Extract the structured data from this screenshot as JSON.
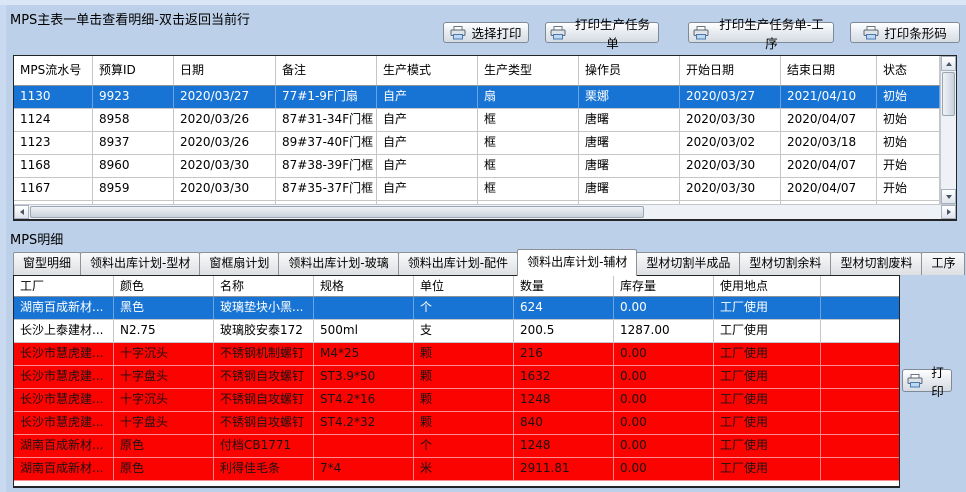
{
  "window": {
    "background": "#bdd0e9"
  },
  "colors": {
    "selection": "#1874d4",
    "alert_row": "#fb0301",
    "grid_line": "#c6c6c6"
  },
  "master": {
    "title": "MPS主表一单击查看明细-双击返回当前行",
    "toolbar": [
      {
        "label": "选择打印"
      },
      {
        "label": "打印生产任务单"
      },
      {
        "label": "打印生产任务单-工序"
      },
      {
        "label": "打印条形码"
      }
    ],
    "columns": [
      "MPS流水号",
      "预算ID",
      "日期",
      "备注",
      "生产模式",
      "生产类型",
      "操作员",
      "开始日期",
      "结束日期",
      "状态"
    ],
    "rows": [
      {
        "state": "selected",
        "cells": [
          "1130",
          "9923",
          "2020/03/27",
          "77#1-9F门扇",
          "自产",
          "扇",
          "栗娜",
          "2020/03/27",
          "2021/04/10",
          "初始"
        ]
      },
      {
        "state": "",
        "cells": [
          "1124",
          "8958",
          "2020/03/26",
          "87#31-34F门框",
          "自产",
          "框",
          "唐曙",
          "2020/03/30",
          "2020/04/07",
          "初始"
        ]
      },
      {
        "state": "",
        "cells": [
          "1123",
          "8937",
          "2020/03/26",
          "89#37-40F门框",
          "自产",
          "框",
          "唐曙",
          "2020/03/02",
          "2020/03/18",
          "初始"
        ]
      },
      {
        "state": "",
        "cells": [
          "1168",
          "8960",
          "2020/03/30",
          "87#38-39F门框",
          "自产",
          "框",
          "唐曙",
          "2020/03/30",
          "2020/04/07",
          "开始"
        ]
      },
      {
        "state": "",
        "cells": [
          "1167",
          "8959",
          "2020/03/30",
          "87#35-37F门框",
          "自产",
          "框",
          "唐曙",
          "2020/03/30",
          "2020/04/07",
          "开始"
        ]
      }
    ]
  },
  "detail": {
    "title": "MPS明细",
    "tabs": [
      {
        "label": "窗型明细",
        "active": false
      },
      {
        "label": "领料出库计划-型材",
        "active": false
      },
      {
        "label": "窗框扇计划",
        "active": false
      },
      {
        "label": "领料出库计划-玻璃",
        "active": false
      },
      {
        "label": "领料出库计划-配件",
        "active": false
      },
      {
        "label": "领料出库计划-辅材",
        "active": true
      },
      {
        "label": "型材切割半成品",
        "active": false
      },
      {
        "label": "型材切割余料",
        "active": false
      },
      {
        "label": "型材切割废料",
        "active": false
      },
      {
        "label": "工序",
        "active": false
      }
    ],
    "columns": [
      "工厂",
      "颜色",
      "名称",
      "规格",
      "单位",
      "数量",
      "库存量",
      "使用地点"
    ],
    "rows": [
      {
        "state": "selected",
        "cells": [
          "湖南百成新材...",
          "黑色",
          "玻璃垫块小黑...",
          "",
          "个",
          "624",
          "0.00",
          "工厂使用"
        ]
      },
      {
        "state": "",
        "cells": [
          "长沙上泰建材...",
          "N2.75",
          "玻璃胶安泰172",
          "500ml",
          "支",
          "200.5",
          "1287.00",
          "工厂使用"
        ]
      },
      {
        "state": "alert",
        "cells": [
          "长沙市慧虎建...",
          "十字沉头",
          "不锈钢机制螺钉",
          "M4*25",
          "颗",
          "216",
          "0.00",
          "工厂使用"
        ]
      },
      {
        "state": "alert",
        "cells": [
          "长沙市慧虎建...",
          "十字盘头",
          "不锈钢自攻螺钉",
          "ST3.9*50",
          "颗",
          "1632",
          "0.00",
          "工厂使用"
        ]
      },
      {
        "state": "alert",
        "cells": [
          "长沙市慧虎建...",
          "十字沉头",
          "不锈钢自攻螺钉",
          "ST4.2*16",
          "颗",
          "1248",
          "0.00",
          "工厂使用"
        ]
      },
      {
        "state": "alert",
        "cells": [
          "长沙市慧虎建...",
          "十字盘头",
          "不锈钢自攻螺钉",
          "ST4.2*32",
          "颗",
          "840",
          "0.00",
          "工厂使用"
        ]
      },
      {
        "state": "alert",
        "cells": [
          "湖南百成新材...",
          "原色",
          "付档CB1771",
          "",
          "个",
          "1248",
          "0.00",
          "工厂使用"
        ]
      },
      {
        "state": "alert",
        "cells": [
          "湖南百成新材...",
          "原色",
          "利得佳毛条",
          "7*4",
          "米",
          "2911.81",
          "0.00",
          "工厂使用"
        ]
      }
    ],
    "print_button": "打印"
  }
}
